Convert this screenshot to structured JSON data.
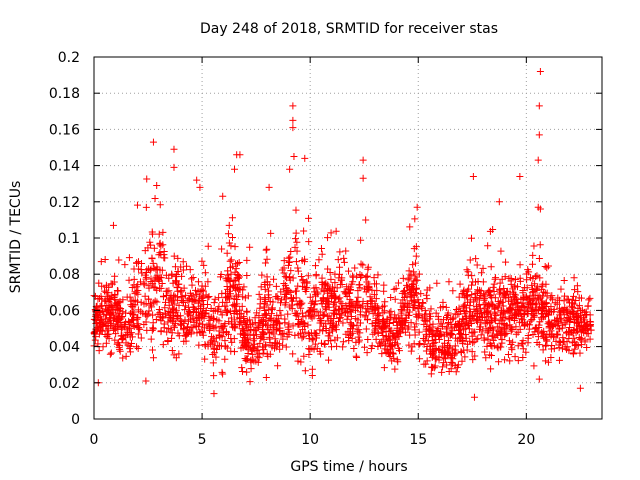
{
  "chart_data": {
    "type": "scatter",
    "title": "Day 248 of 2018, SRMTID for receiver stas",
    "xlabel": "GPS time / hours",
    "ylabel": "SRMTID / TECUs",
    "xlim": [
      0,
      23.5
    ],
    "ylim": [
      0,
      0.2
    ],
    "x_ticks": [
      "0",
      "5",
      "10",
      "15",
      "20"
    ],
    "y_ticks": [
      "0",
      "0.02",
      "0.04",
      "0.06",
      "0.08",
      "0.1",
      "0.12",
      "0.14",
      "0.16",
      "0.18",
      "0.2"
    ],
    "grid": true,
    "marker": "plus",
    "series_color": "#ff0000",
    "outliers": [
      {
        "x": 2.75,
        "y": 0.153
      },
      {
        "x": 3.7,
        "y": 0.149
      },
      {
        "x": 6.6,
        "y": 0.146
      },
      {
        "x": 6.75,
        "y": 0.146
      },
      {
        "x": 9.2,
        "y": 0.173
      },
      {
        "x": 9.2,
        "y": 0.165
      },
      {
        "x": 9.2,
        "y": 0.161
      },
      {
        "x": 9.25,
        "y": 0.145
      },
      {
        "x": 9.75,
        "y": 0.144
      },
      {
        "x": 12.45,
        "y": 0.143
      },
      {
        "x": 17.55,
        "y": 0.134
      },
      {
        "x": 19.7,
        "y": 0.134
      },
      {
        "x": 20.65,
        "y": 0.192
      },
      {
        "x": 20.6,
        "y": 0.173
      },
      {
        "x": 20.6,
        "y": 0.157
      },
      {
        "x": 20.55,
        "y": 0.143
      },
      {
        "x": 20.55,
        "y": 0.117
      },
      {
        "x": 20.65,
        "y": 0.116
      },
      {
        "x": 4.75,
        "y": 0.132
      },
      {
        "x": 3.7,
        "y": 0.139
      },
      {
        "x": 9.05,
        "y": 0.138
      },
      {
        "x": 12.45,
        "y": 0.133
      },
      {
        "x": 8.1,
        "y": 0.128
      },
      {
        "x": 14.95,
        "y": 0.117
      },
      {
        "x": 18.75,
        "y": 0.12
      },
      {
        "x": 0.9,
        "y": 0.107
      },
      {
        "x": 4.9,
        "y": 0.128
      },
      {
        "x": 2.9,
        "y": 0.129
      },
      {
        "x": 6.5,
        "y": 0.138
      },
      {
        "x": 0.2,
        "y": 0.02
      },
      {
        "x": 17.6,
        "y": 0.012
      },
      {
        "x": 20.6,
        "y": 0.022
      },
      {
        "x": 5.55,
        "y": 0.014
      },
      {
        "x": 2.4,
        "y": 0.021
      },
      {
        "x": 22.5,
        "y": 0.017
      },
      {
        "x": 10.1,
        "y": 0.024
      }
    ],
    "activity_profile": {
      "hours": [
        0,
        0.5,
        1,
        1.5,
        2,
        2.5,
        3,
        3.5,
        4,
        4.5,
        5,
        5.5,
        6,
        6.5,
        7,
        7.5,
        8,
        8.5,
        9,
        9.5,
        10,
        10.5,
        11,
        11.5,
        12,
        12.5,
        13,
        13.5,
        14,
        14.5,
        15,
        15.5,
        16,
        16.5,
        17,
        17.5,
        18,
        18.5,
        19,
        19.5,
        20,
        20.5,
        21,
        21.5,
        22,
        22.5,
        23
      ],
      "typical": [
        0.055,
        0.058,
        0.055,
        0.05,
        0.065,
        0.07,
        0.075,
        0.06,
        0.065,
        0.058,
        0.06,
        0.045,
        0.055,
        0.07,
        0.045,
        0.04,
        0.06,
        0.05,
        0.07,
        0.065,
        0.055,
        0.06,
        0.06,
        0.062,
        0.058,
        0.065,
        0.06,
        0.045,
        0.045,
        0.06,
        0.065,
        0.045,
        0.04,
        0.045,
        0.05,
        0.06,
        0.06,
        0.055,
        0.06,
        0.058,
        0.06,
        0.06,
        0.055,
        0.05,
        0.05,
        0.055,
        0.05
      ],
      "spread": [
        0.015,
        0.015,
        0.015,
        0.015,
        0.022,
        0.025,
        0.03,
        0.022,
        0.025,
        0.018,
        0.02,
        0.02,
        0.025,
        0.03,
        0.02,
        0.015,
        0.025,
        0.022,
        0.03,
        0.025,
        0.022,
        0.02,
        0.02,
        0.022,
        0.02,
        0.025,
        0.02,
        0.015,
        0.015,
        0.02,
        0.025,
        0.015,
        0.015,
        0.018,
        0.02,
        0.025,
        0.02,
        0.02,
        0.022,
        0.02,
        0.022,
        0.022,
        0.018,
        0.015,
        0.015,
        0.015,
        0.012
      ],
      "samples": 2600,
      "seed": 248
    }
  }
}
